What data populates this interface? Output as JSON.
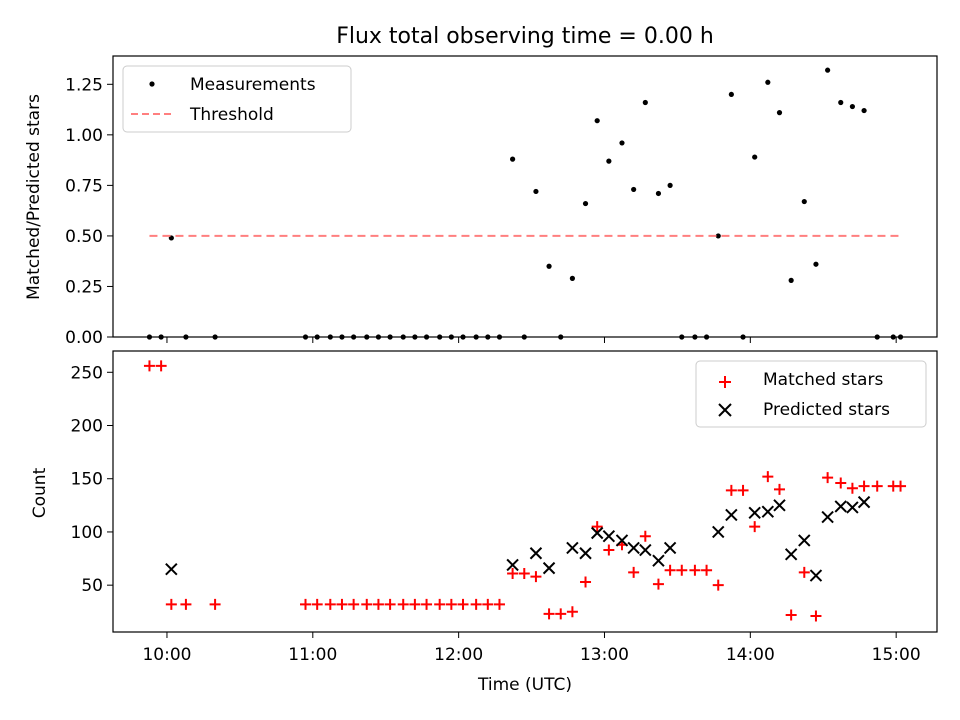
{
  "chart_data": [
    {
      "type": "scatter",
      "title": "Flux total observing time = 0.00 h",
      "xlabel": "",
      "ylabel": "Matched/Predicted stars",
      "x_unit": "hours UTC",
      "xlim": [
        9.63,
        15.28
      ],
      "ylim": [
        0,
        1.39
      ],
      "yticks": [
        0,
        0.25,
        0.5,
        0.75,
        1.0,
        1.25
      ],
      "ytick_labels": [
        "0.00",
        "0.25",
        "0.50",
        "0.75",
        "1.00",
        "1.25"
      ],
      "xticks": [
        10,
        11,
        12,
        13,
        14,
        15
      ],
      "xtick_labels": [
        "",
        "",
        "",
        "",
        "",
        ""
      ],
      "legend_position": "top-left",
      "series": [
        {
          "name": "Measurements",
          "kind": "points",
          "color": "#000000",
          "x": [
            9.88,
            9.96,
            10.03,
            10.13,
            10.33,
            10.95,
            11.03,
            11.12,
            11.2,
            11.28,
            11.37,
            11.45,
            11.53,
            11.62,
            11.7,
            11.78,
            11.87,
            11.95,
            12.03,
            12.12,
            12.2,
            12.28,
            12.37,
            12.45,
            12.53,
            12.62,
            12.7,
            12.78,
            12.87,
            12.95,
            13.03,
            13.12,
            13.2,
            13.28,
            13.37,
            13.45,
            13.53,
            13.62,
            13.7,
            13.78,
            13.87,
            13.95,
            14.03,
            14.12,
            14.2,
            14.28,
            14.37,
            14.45,
            14.53,
            14.62,
            14.7,
            14.78,
            14.87,
            14.98,
            15.03
          ],
          "y": [
            0,
            0,
            0.49,
            0,
            0,
            0,
            0,
            0,
            0,
            0,
            0,
            0,
            0,
            0,
            0,
            0,
            0,
            0,
            0,
            0,
            0,
            0,
            0.88,
            0,
            0.72,
            0.35,
            0,
            0.29,
            0.66,
            1.07,
            0.87,
            0.96,
            0.73,
            1.16,
            0.71,
            0.75,
            0,
            0,
            0,
            0.5,
            1.2,
            0,
            0.89,
            1.26,
            1.11,
            0.28,
            0.67,
            0.36,
            1.32,
            1.16,
            1.14,
            1.12,
            0,
            0,
            0
          ]
        },
        {
          "name": "Threshold",
          "kind": "dashed-line",
          "color": "#ff7f7f",
          "x": [
            9.88,
            15.03
          ],
          "y": [
            0.5,
            0.5
          ]
        }
      ]
    },
    {
      "type": "scatter",
      "title": "",
      "xlabel": "Time (UTC)",
      "ylabel": "Count",
      "x_unit": "hours UTC",
      "xlim": [
        9.63,
        15.28
      ],
      "ylim": [
        6,
        270
      ],
      "yticks": [
        50,
        100,
        150,
        200,
        250
      ],
      "ytick_labels": [
        "50",
        "100",
        "150",
        "200",
        "250"
      ],
      "xticks": [
        10,
        11,
        12,
        13,
        14,
        15
      ],
      "xtick_labels": [
        "10:00",
        "11:00",
        "12:00",
        "13:00",
        "14:00",
        "15:00"
      ],
      "legend_position": "top-right",
      "series": [
        {
          "name": "Matched stars",
          "marker": "plus",
          "color": "#ff0000",
          "x": [
            9.88,
            9.96,
            10.03,
            10.13,
            10.33,
            10.95,
            11.03,
            11.12,
            11.2,
            11.28,
            11.37,
            11.45,
            11.53,
            11.62,
            11.7,
            11.78,
            11.87,
            11.95,
            12.03,
            12.12,
            12.2,
            12.28,
            12.37,
            12.45,
            12.53,
            12.62,
            12.7,
            12.78,
            12.87,
            12.95,
            13.03,
            13.12,
            13.2,
            13.28,
            13.37,
            13.45,
            13.53,
            13.62,
            13.7,
            13.78,
            13.87,
            13.95,
            14.03,
            14.12,
            14.2,
            14.28,
            14.37,
            14.45,
            14.53,
            14.62,
            14.7,
            14.78,
            14.87,
            14.98,
            15.03
          ],
          "y": [
            256,
            256,
            32,
            32,
            32,
            32,
            32,
            32,
            32,
            32,
            32,
            32,
            32,
            32,
            32,
            32,
            32,
            32,
            32,
            32,
            32,
            32,
            61,
            61,
            58,
            23,
            23,
            25,
            53,
            105,
            83,
            88,
            62,
            96,
            51,
            64,
            64,
            64,
            64,
            50,
            139,
            139,
            105,
            152,
            140,
            22,
            62,
            21,
            151,
            146,
            141,
            143,
            143,
            143,
            143
          ]
        },
        {
          "name": "Predicted stars",
          "marker": "x",
          "color": "#000000",
          "x": [
            10.03,
            12.37,
            12.53,
            12.62,
            12.78,
            12.87,
            12.95,
            13.03,
            13.12,
            13.2,
            13.28,
            13.37,
            13.45,
            13.78,
            13.87,
            14.03,
            14.12,
            14.2,
            14.28,
            14.37,
            14.45,
            14.53,
            14.62,
            14.7,
            14.78
          ],
          "y": [
            65,
            69,
            80,
            66,
            85,
            80,
            99,
            96,
            92,
            85,
            83,
            73,
            85,
            100,
            116,
            118,
            119,
            125,
            79,
            92,
            59,
            114,
            124,
            123,
            128
          ]
        }
      ]
    }
  ]
}
